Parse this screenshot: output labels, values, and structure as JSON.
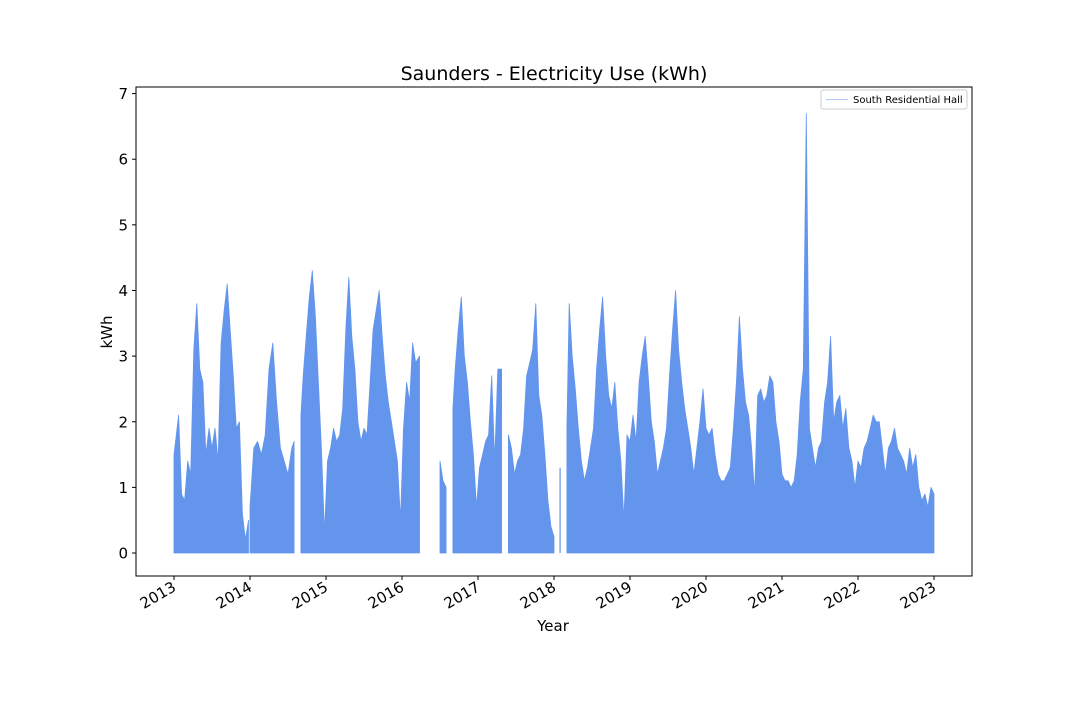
{
  "chart_data": {
    "type": "area",
    "title": "Saunders - Electricity Use (kWh)",
    "xlabel": "Year",
    "ylabel": "kWh",
    "xlim": [
      2012.5,
      2023.5
    ],
    "ylim": [
      -0.35,
      7.1
    ],
    "yticks": [
      0,
      1,
      2,
      3,
      4,
      5,
      6,
      7
    ],
    "xticks": [
      {
        "label": "2013",
        "x": 2013
      },
      {
        "label": "2014",
        "x": 2014
      },
      {
        "label": "2015",
        "x": 2015
      },
      {
        "label": "2016",
        "x": 2016
      },
      {
        "label": "2017",
        "x": 2017
      },
      {
        "label": "2018",
        "x": 2018
      },
      {
        "label": "2019",
        "x": 2019
      },
      {
        "label": "2020",
        "x": 2020
      },
      {
        "label": "2021",
        "x": 2021
      },
      {
        "label": "2022",
        "x": 2022
      },
      {
        "label": "2023",
        "x": 2023
      }
    ],
    "grid": false,
    "legend": {
      "placement": "top-right"
    },
    "series": [
      {
        "name": "South Residential Hall",
        "color": "#6495ED",
        "segments": [
          {
            "x": [
              2013.0,
              2013.03,
              2013.06,
              2013.1,
              2013.14,
              2013.18,
              2013.22,
              2013.26,
              2013.3,
              2013.34,
              2013.38,
              2013.42,
              2013.46,
              2013.5,
              2013.54,
              2013.58,
              2013.62,
              2013.66,
              2013.7,
              2013.74,
              2013.78,
              2013.82,
              2013.86,
              2013.9,
              2013.94,
              2013.98
            ],
            "y": [
              1.5,
              1.8,
              2.1,
              0.9,
              0.8,
              1.4,
              1.2,
              3.1,
              3.8,
              2.8,
              2.6,
              1.5,
              1.9,
              1.6,
              1.9,
              1.4,
              3.2,
              3.7,
              4.1,
              3.4,
              2.7,
              1.9,
              2.0,
              0.6,
              0.2,
              0.5
            ]
          },
          {
            "x": [
              2014.0,
              2014.05,
              2014.1,
              2014.15,
              2014.2,
              2014.25,
              2014.3,
              2014.35,
              2014.4,
              2014.45,
              2014.5,
              2014.55,
              2014.58
            ],
            "y": [
              0.7,
              1.6,
              1.7,
              1.5,
              1.8,
              2.8,
              3.2,
              2.3,
              1.6,
              1.4,
              1.2,
              1.6,
              1.7
            ]
          },
          {
            "x": [
              2014.67,
              2014.7,
              2014.74,
              2014.78,
              2014.82,
              2014.86,
              2014.9,
              2014.94,
              2014.98,
              2015.02,
              2015.06,
              2015.1,
              2015.14,
              2015.18,
              2015.22,
              2015.26,
              2015.3,
              2015.34,
              2015.38,
              2015.42,
              2015.46,
              2015.5,
              2015.54,
              2015.58,
              2015.62,
              2015.66,
              2015.7,
              2015.74,
              2015.78,
              2015.82,
              2015.86,
              2015.9,
              2015.94,
              2015.98,
              2016.02,
              2016.06,
              2016.1,
              2016.14,
              2016.18,
              2016.23
            ],
            "y": [
              2.1,
              2.7,
              3.3,
              3.9,
              4.3,
              3.6,
              2.6,
              1.6,
              0.3,
              1.4,
              1.6,
              1.9,
              1.7,
              1.8,
              2.2,
              3.4,
              4.2,
              3.3,
              2.8,
              2.0,
              1.7,
              1.9,
              1.8,
              2.6,
              3.4,
              3.7,
              4.0,
              3.3,
              2.7,
              2.3,
              2.0,
              1.7,
              1.4,
              0.5,
              1.9,
              2.6,
              2.3,
              3.2,
              2.9,
              3.0
            ]
          },
          {
            "x": [
              2016.5,
              2016.54,
              2016.58
            ],
            "y": [
              1.4,
              1.1,
              1.0
            ]
          },
          {
            "x": [
              2016.67,
              2016.7,
              2016.74,
              2016.78,
              2016.82,
              2016.86,
              2016.9,
              2016.94,
              2016.98,
              2017.02,
              2017.06,
              2017.1,
              2017.14,
              2017.18,
              2017.22,
              2017.26,
              2017.31
            ],
            "y": [
              2.2,
              2.8,
              3.4,
              3.9,
              3.0,
              2.6,
              2.0,
              1.5,
              0.7,
              1.3,
              1.5,
              1.7,
              1.8,
              2.7,
              1.4,
              2.8,
              2.8
            ]
          },
          {
            "x": [
              2017.4,
              2017.44,
              2017.48,
              2017.52,
              2017.56,
              2017.6,
              2017.64,
              2017.68,
              2017.72,
              2017.76,
              2017.8,
              2017.84,
              2017.88,
              2017.92,
              2017.96,
              2018.0
            ],
            "y": [
              1.8,
              1.6,
              1.2,
              1.4,
              1.5,
              1.9,
              2.7,
              2.9,
              3.1,
              3.8,
              2.4,
              2.1,
              1.5,
              0.8,
              0.4,
              0.25
            ]
          },
          {
            "x": [
              2018.08
            ],
            "y": [
              1.3
            ]
          },
          {
            "x": [
              2018.17,
              2018.2,
              2018.24,
              2018.28,
              2018.32,
              2018.36,
              2018.4,
              2018.44,
              2018.48,
              2018.52,
              2018.56,
              2018.6,
              2018.64,
              2018.68,
              2018.72,
              2018.76,
              2018.8,
              2018.84,
              2018.88,
              2018.92,
              2018.96,
              2019.0,
              2019.04,
              2019.08,
              2019.12,
              2019.16,
              2019.2,
              2019.24,
              2019.28,
              2019.32,
              2019.36,
              2019.4,
              2019.44,
              2019.48,
              2019.52,
              2019.56,
              2019.6,
              2019.64,
              2019.68,
              2019.72,
              2019.76,
              2019.8,
              2019.84,
              2019.88,
              2019.92,
              2019.96,
              2020.0,
              2020.04,
              2020.08,
              2020.12,
              2020.16,
              2020.2,
              2020.24,
              2020.28,
              2020.32,
              2020.36,
              2020.4,
              2020.44,
              2020.48,
              2020.52,
              2020.56,
              2020.6,
              2020.64,
              2020.68,
              2020.72,
              2020.76,
              2020.8,
              2020.84,
              2020.88,
              2020.92,
              2020.96,
              2021.0,
              2021.04,
              2021.08,
              2021.12,
              2021.16,
              2021.2,
              2021.24,
              2021.28,
              2021.32,
              2021.36,
              2021.4,
              2021.44,
              2021.48,
              2021.52,
              2021.56,
              2021.6,
              2021.64,
              2021.68,
              2021.72,
              2021.76,
              2021.8,
              2021.84,
              2021.88,
              2021.92,
              2021.96,
              2022.0,
              2022.04,
              2022.08,
              2022.12,
              2022.16,
              2022.2,
              2022.24,
              2022.28,
              2022.32,
              2022.36,
              2022.4,
              2022.44,
              2022.48,
              2022.52,
              2022.56,
              2022.6,
              2022.64,
              2022.68,
              2022.72,
              2022.76,
              2022.8,
              2022.84,
              2022.88,
              2022.92,
              2022.96,
              2023.0
            ],
            "y": [
              1.9,
              3.8,
              3.0,
              2.5,
              1.9,
              1.4,
              1.1,
              1.3,
              1.6,
              1.9,
              2.8,
              3.4,
              3.9,
              3.0,
              2.4,
              2.2,
              2.6,
              1.9,
              1.4,
              0.5,
              1.8,
              1.7,
              2.1,
              1.7,
              2.6,
              3.0,
              3.3,
              2.7,
              2.0,
              1.7,
              1.2,
              1.4,
              1.6,
              1.9,
              2.7,
              3.4,
              4.0,
              3.1,
              2.6,
              2.2,
              1.9,
              1.6,
              1.2,
              1.6,
              2.0,
              2.5,
              1.9,
              1.8,
              1.9,
              1.5,
              1.2,
              1.1,
              1.1,
              1.2,
              1.3,
              1.9,
              2.6,
              3.6,
              2.8,
              2.3,
              2.1,
              1.6,
              0.9,
              2.4,
              2.5,
              2.3,
              2.4,
              2.7,
              2.6,
              2.0,
              1.7,
              1.2,
              1.1,
              1.1,
              1.0,
              1.1,
              1.5,
              2.3,
              2.8,
              6.7,
              1.9,
              1.6,
              1.3,
              1.6,
              1.7,
              2.3,
              2.6,
              3.3,
              2.0,
              2.3,
              2.4,
              1.9,
              2.2,
              1.6,
              1.4,
              1.0,
              1.4,
              1.3,
              1.6,
              1.7,
              1.9,
              2.1,
              2.0,
              2.0,
              1.6,
              1.2,
              1.6,
              1.7,
              1.9,
              1.6,
              1.5,
              1.4,
              1.2,
              1.6,
              1.3,
              1.5,
              1.0,
              0.8,
              0.9,
              0.7,
              1.0,
              0.9
            ]
          }
        ]
      }
    ]
  }
}
